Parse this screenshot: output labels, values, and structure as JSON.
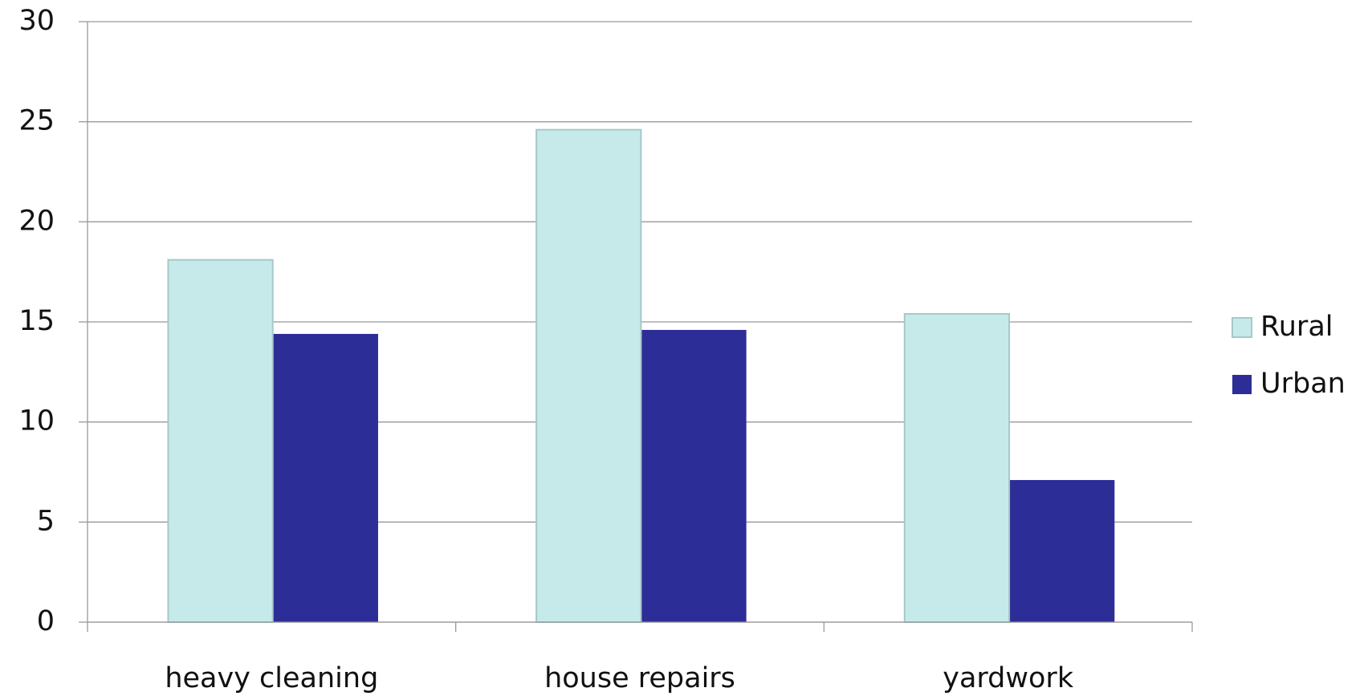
{
  "chart_data": {
    "type": "bar",
    "categories": [
      "heavy cleaning",
      "house repairs",
      "yardwork"
    ],
    "series": [
      {
        "name": "Rural",
        "color": "#c6eaea",
        "values": [
          18.1,
          24.6,
          15.4
        ]
      },
      {
        "name": "Urban",
        "color": "#2d2d98",
        "values": [
          14.4,
          14.6,
          7.1
        ]
      }
    ],
    "ylim": [
      0,
      30
    ],
    "yticks": [
      0,
      5,
      10,
      15,
      20,
      25,
      30
    ],
    "grid": true,
    "legend": "right"
  }
}
